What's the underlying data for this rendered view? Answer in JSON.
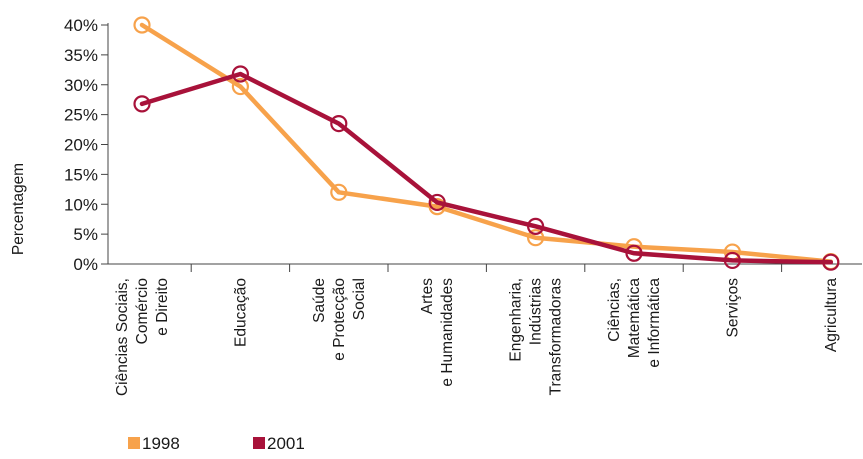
{
  "chart_data": {
    "type": "line",
    "ylabel": "Percentagem",
    "xlabel": "",
    "ylim": [
      0,
      40
    ],
    "y_ticks": [
      "0%",
      "5%",
      "10%",
      "15%",
      "20%",
      "25%",
      "30%",
      "35%",
      "40%"
    ],
    "y_tick_values": [
      0,
      5,
      10,
      15,
      20,
      25,
      30,
      35,
      40
    ],
    "categories": [
      [
        "Ciências Sociais,",
        "Comércio",
        "e Direito"
      ],
      [
        "Educação"
      ],
      [
        "Saúde",
        "e Protecção",
        "Social"
      ],
      [
        "Artes",
        "e Humanidades"
      ],
      [
        "Engenharia,",
        "Indústrias",
        "Transformadoras"
      ],
      [
        "Ciências,",
        "Matemática",
        "e Informática"
      ],
      [
        "Serviços"
      ],
      [
        "Agricultura"
      ]
    ],
    "series": [
      {
        "name": "1998",
        "color": "#f7a24b",
        "values": [
          40.0,
          29.7,
          12.0,
          9.6,
          4.4,
          2.9,
          2.0,
          0.4
        ]
      },
      {
        "name": "2001",
        "color": "#a8123a",
        "values": [
          26.8,
          31.8,
          23.5,
          10.3,
          6.3,
          1.8,
          0.6,
          0.3
        ]
      }
    ],
    "legend_position": "bottom-left",
    "grid": false
  }
}
